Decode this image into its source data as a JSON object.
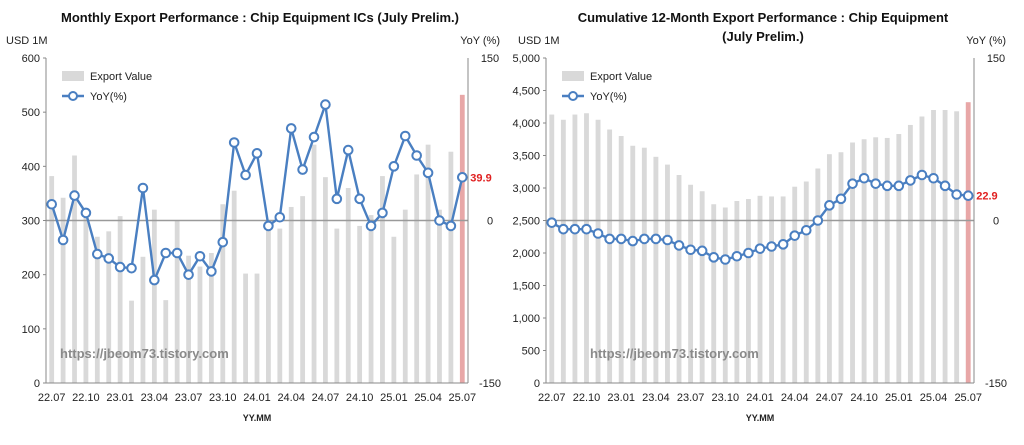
{
  "watermark": "https://jbeom73.tistory.com",
  "chart_data": [
    {
      "type": "bar",
      "title": "Monthly Export Performance : Chip Equipment ICs (July Prelim.)",
      "ylabel": "USD 1M",
      "y2label": "YoY (%)",
      "xlabel": "YY.MM",
      "ylim": [
        0,
        600
      ],
      "y2lim": [
        -150,
        150
      ],
      "y_ticks": [
        "0",
        "100",
        "200",
        "300",
        "400",
        "500",
        "600"
      ],
      "y2_ticks": [
        "-150",
        "0",
        "150"
      ],
      "x_tick_labels": [
        "22.07",
        "22.10",
        "23.01",
        "23.04",
        "23.07",
        "23.10",
        "24.01",
        "24.04",
        "24.07",
        "24.10",
        "25.01",
        "25.04",
        "25.07"
      ],
      "categories": [
        "22.07",
        "22.08",
        "22.09",
        "22.10",
        "22.11",
        "22.12",
        "23.01",
        "23.02",
        "23.03",
        "23.04",
        "23.05",
        "23.06",
        "23.07",
        "23.08",
        "23.09",
        "23.10",
        "23.11",
        "23.12",
        "24.01",
        "24.02",
        "24.03",
        "24.04",
        "24.05",
        "24.06",
        "24.07",
        "24.08",
        "24.09",
        "24.10",
        "24.11",
        "24.12",
        "25.01",
        "25.02",
        "25.03",
        "25.04",
        "25.05",
        "25.06",
        "25.07"
      ],
      "legend": [
        {
          "label": "Export Value",
          "kind": "bar"
        },
        {
          "label": "YoY(%)",
          "kind": "line"
        }
      ],
      "series": [
        {
          "name": "Export Value",
          "axis": "left",
          "values": [
            382,
            342,
            420,
            305,
            270,
            280,
            308,
            152,
            233,
            320,
            153,
            300,
            235,
            215,
            240,
            330,
            355,
            202,
            202,
            290,
            285,
            325,
            345,
            440,
            380,
            285,
            360,
            290,
            310,
            382,
            270,
            320,
            385,
            440,
            320,
            427,
            532
          ]
        },
        {
          "name": "YoY(%)",
          "axis": "right",
          "values": [
            15,
            -18,
            23,
            7,
            -31,
            -35,
            -43,
            -44,
            30,
            -55,
            -30,
            -30,
            -50,
            -33,
            -47,
            -20,
            72,
            42,
            62,
            -5,
            3,
            85,
            47,
            77,
            107,
            20,
            65,
            20,
            -5,
            7,
            50,
            78,
            60,
            44,
            0,
            -5,
            39.9
          ]
        }
      ],
      "last_label": "39.9",
      "highlight_color": "#e8a7a7",
      "bar_color": "#d9d9d9",
      "line_color": "#4a7fc1",
      "label_color": "#e02020"
    },
    {
      "type": "bar",
      "title": "Cumulative 12-Month Export Performance : Chip Equipment",
      "subtitle": "(July Prelim.)",
      "ylabel": "USD 1M",
      "y2label": "YoY (%)",
      "xlabel": "YY.MM",
      "ylim": [
        0,
        5000
      ],
      "y2lim": [
        -150,
        150
      ],
      "y_ticks": [
        "0",
        "500",
        "1,000",
        "1,500",
        "2,000",
        "2,500",
        "3,000",
        "3,500",
        "4,000",
        "4,500",
        "5,000"
      ],
      "y2_ticks": [
        "-150",
        "0",
        "150"
      ],
      "x_tick_labels": [
        "22.07",
        "22.10",
        "23.01",
        "23.04",
        "23.07",
        "23.10",
        "24.01",
        "24.04",
        "24.07",
        "24.10",
        "25.01",
        "25.04",
        "25.07"
      ],
      "categories": [
        "22.07",
        "22.08",
        "22.09",
        "22.10",
        "22.11",
        "22.12",
        "23.01",
        "23.02",
        "23.03",
        "23.04",
        "23.05",
        "23.06",
        "23.07",
        "23.08",
        "23.09",
        "23.10",
        "23.11",
        "23.12",
        "24.01",
        "24.02",
        "24.03",
        "24.04",
        "24.05",
        "24.06",
        "24.07",
        "24.08",
        "24.09",
        "24.10",
        "24.11",
        "24.12",
        "25.01",
        "25.02",
        "25.03",
        "25.04",
        "25.05",
        "25.06",
        "25.07"
      ],
      "legend": [
        {
          "label": "Export Value",
          "kind": "bar"
        },
        {
          "label": "YoY(%)",
          "kind": "line"
        }
      ],
      "series": [
        {
          "name": "Export Value",
          "axis": "left",
          "values": [
            4130,
            4050,
            4130,
            4150,
            4050,
            3900,
            3800,
            3650,
            3620,
            3480,
            3360,
            3200,
            3050,
            2950,
            2750,
            2700,
            2800,
            2830,
            2880,
            2870,
            2870,
            3020,
            3100,
            3300,
            3520,
            3550,
            3700,
            3750,
            3780,
            3770,
            3830,
            3970,
            4100,
            4200,
            4200,
            4180,
            4320
          ]
        },
        {
          "name": "YoY(%)",
          "axis": "right",
          "values": [
            -2,
            -8,
            -8,
            -8,
            -12,
            -17,
            -17,
            -19,
            -17,
            -17,
            -18,
            -23,
            -27,
            -28,
            -34,
            -36,
            -33,
            -30,
            -26,
            -24,
            -22,
            -14,
            -9,
            0,
            14,
            20,
            34,
            39,
            34,
            32,
            32,
            37,
            42,
            39,
            32,
            24,
            22.9
          ]
        }
      ],
      "last_label": "22.9",
      "highlight_color": "#e8a7a7",
      "bar_color": "#d9d9d9",
      "line_color": "#4a7fc1",
      "label_color": "#e02020"
    }
  ]
}
